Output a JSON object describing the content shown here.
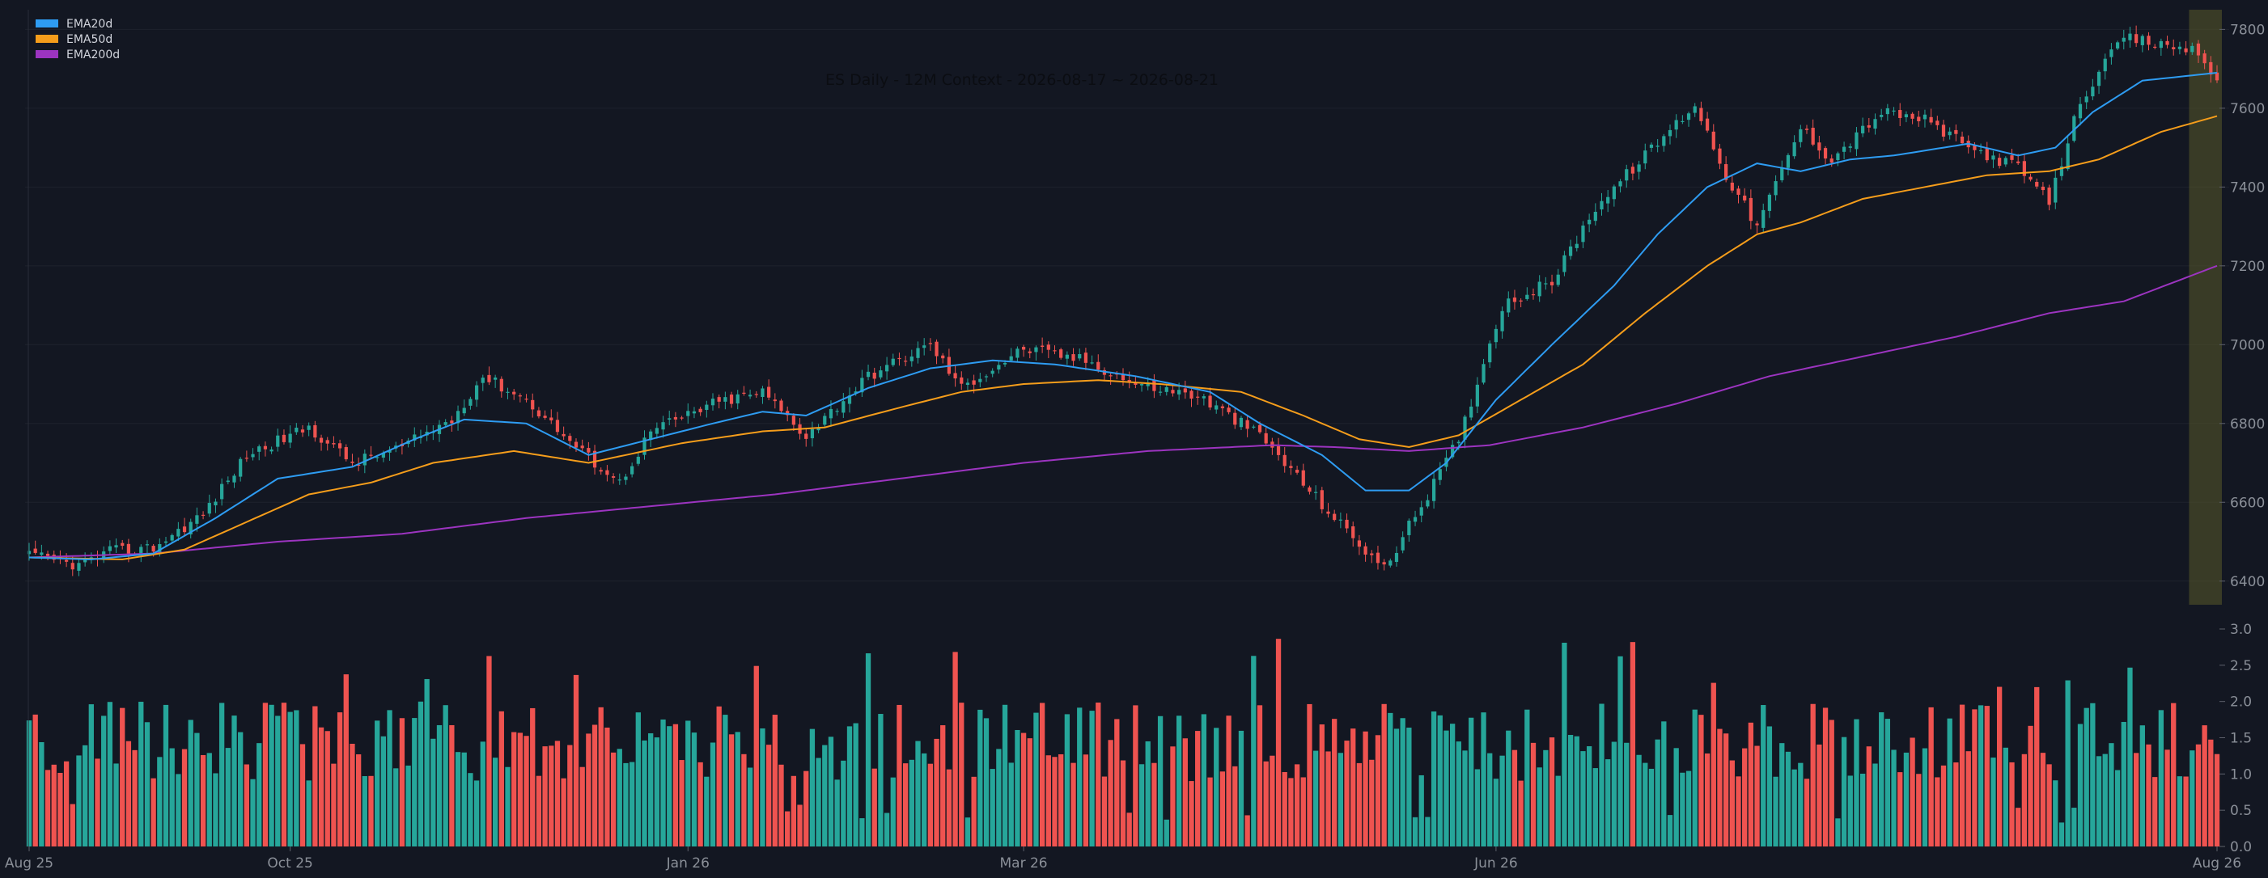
{
  "chart_data": {
    "type": "candlestick",
    "title": "ES Daily - 12M Context - 2026-08-17 ~ 2026-08-21",
    "x_ticks": [
      "Aug 25",
      "Oct 25",
      "Jan 26",
      "Mar 26",
      "Jun 26",
      "Aug 26"
    ],
    "price_axis": {
      "ylim": [
        6340,
        7850
      ],
      "ticks": [
        6400,
        6600,
        6800,
        7000,
        7200,
        7400,
        7600,
        7800
      ]
    },
    "volume_axis": {
      "ylim": [
        0,
        3.0
      ],
      "ticks": [
        "0.0",
        "0.5",
        "1.0",
        "1.5",
        "2.0",
        "2.5",
        "3.0"
      ]
    },
    "highlight_window": "2026-08-17 ~ 2026-08-21",
    "legend": [
      {
        "name": "EMA20d",
        "color": "#2e9cf2"
      },
      {
        "name": "EMA50d",
        "color": "#f59d1b"
      },
      {
        "name": "EMA200d",
        "color": "#9c34c0"
      }
    ],
    "colors": {
      "up": "#26a69a",
      "down": "#ef5350",
      "grid": "#1e222d",
      "highlight": "#5a5a2a"
    },
    "price_anchors": [
      [
        0,
        6465
      ],
      [
        8,
        6440
      ],
      [
        13,
        6475
      ],
      [
        20,
        6485
      ],
      [
        28,
        6570
      ],
      [
        35,
        6720
      ],
      [
        45,
        6790
      ],
      [
        52,
        6700
      ],
      [
        60,
        6740
      ],
      [
        68,
        6810
      ],
      [
        73,
        6920
      ],
      [
        80,
        6860
      ],
      [
        88,
        6740
      ],
      [
        95,
        6650
      ],
      [
        100,
        6780
      ],
      [
        110,
        6850
      ],
      [
        118,
        6880
      ],
      [
        125,
        6770
      ],
      [
        135,
        6920
      ],
      [
        145,
        7000
      ],
      [
        150,
        6890
      ],
      [
        160,
        6990
      ],
      [
        170,
        6960
      ],
      [
        178,
        6900
      ],
      [
        188,
        6870
      ],
      [
        198,
        6770
      ],
      [
        210,
        6560
      ],
      [
        218,
        6430
      ],
      [
        225,
        6620
      ],
      [
        230,
        6760
      ],
      [
        237,
        7100
      ],
      [
        245,
        7160
      ],
      [
        252,
        7350
      ],
      [
        260,
        7480
      ],
      [
        268,
        7610
      ],
      [
        273,
        7430
      ],
      [
        278,
        7300
      ],
      [
        285,
        7550
      ],
      [
        290,
        7470
      ],
      [
        298,
        7590
      ],
      [
        305,
        7570
      ],
      [
        312,
        7500
      ],
      [
        320,
        7450
      ],
      [
        325,
        7360
      ],
      [
        330,
        7620
      ],
      [
        337,
        7780
      ],
      [
        343,
        7760
      ],
      [
        348,
        7750
      ],
      [
        352,
        7680
      ]
    ],
    "ema20_anchors": [
      [
        0,
        6460
      ],
      [
        10,
        6455
      ],
      [
        20,
        6470
      ],
      [
        30,
        6560
      ],
      [
        40,
        6660
      ],
      [
        52,
        6690
      ],
      [
        62,
        6760
      ],
      [
        70,
        6810
      ],
      [
        80,
        6800
      ],
      [
        90,
        6720
      ],
      [
        100,
        6760
      ],
      [
        110,
        6800
      ],
      [
        118,
        6830
      ],
      [
        125,
        6820
      ],
      [
        135,
        6890
      ],
      [
        145,
        6940
      ],
      [
        155,
        6960
      ],
      [
        165,
        6950
      ],
      [
        178,
        6920
      ],
      [
        190,
        6880
      ],
      [
        198,
        6800
      ],
      [
        208,
        6720
      ],
      [
        215,
        6630
      ],
      [
        222,
        6630
      ],
      [
        228,
        6700
      ],
      [
        236,
        6860
      ],
      [
        245,
        7000
      ],
      [
        255,
        7150
      ],
      [
        262,
        7280
      ],
      [
        270,
        7400
      ],
      [
        278,
        7460
      ],
      [
        285,
        7440
      ],
      [
        293,
        7470
      ],
      [
        300,
        7480
      ],
      [
        312,
        7510
      ],
      [
        320,
        7480
      ],
      [
        326,
        7500
      ],
      [
        332,
        7590
      ],
      [
        340,
        7670
      ],
      [
        352,
        7690
      ]
    ],
    "ema50_anchors": [
      [
        0,
        6460
      ],
      [
        15,
        6455
      ],
      [
        25,
        6480
      ],
      [
        35,
        6550
      ],
      [
        45,
        6620
      ],
      [
        55,
        6650
      ],
      [
        65,
        6700
      ],
      [
        78,
        6730
      ],
      [
        90,
        6700
      ],
      [
        105,
        6750
      ],
      [
        118,
        6780
      ],
      [
        128,
        6790
      ],
      [
        140,
        6840
      ],
      [
        150,
        6880
      ],
      [
        160,
        6900
      ],
      [
        172,
        6910
      ],
      [
        182,
        6900
      ],
      [
        195,
        6880
      ],
      [
        205,
        6820
      ],
      [
        214,
        6760
      ],
      [
        222,
        6740
      ],
      [
        230,
        6770
      ],
      [
        240,
        6860
      ],
      [
        250,
        6950
      ],
      [
        260,
        7080
      ],
      [
        270,
        7200
      ],
      [
        278,
        7280
      ],
      [
        285,
        7310
      ],
      [
        295,
        7370
      ],
      [
        305,
        7400
      ],
      [
        315,
        7430
      ],
      [
        325,
        7440
      ],
      [
        333,
        7470
      ],
      [
        343,
        7540
      ],
      [
        352,
        7580
      ]
    ],
    "ema200_anchors": [
      [
        0,
        6460
      ],
      [
        20,
        6470
      ],
      [
        40,
        6500
      ],
      [
        60,
        6520
      ],
      [
        80,
        6560
      ],
      [
        100,
        6590
      ],
      [
        120,
        6620
      ],
      [
        140,
        6660
      ],
      [
        160,
        6700
      ],
      [
        180,
        6730
      ],
      [
        200,
        6745
      ],
      [
        210,
        6740
      ],
      [
        222,
        6730
      ],
      [
        235,
        6745
      ],
      [
        250,
        6790
      ],
      [
        265,
        6850
      ],
      [
        280,
        6920
      ],
      [
        295,
        6970
      ],
      [
        310,
        7020
      ],
      [
        325,
        7080
      ],
      [
        337,
        7110
      ],
      [
        352,
        7200
      ]
    ]
  }
}
